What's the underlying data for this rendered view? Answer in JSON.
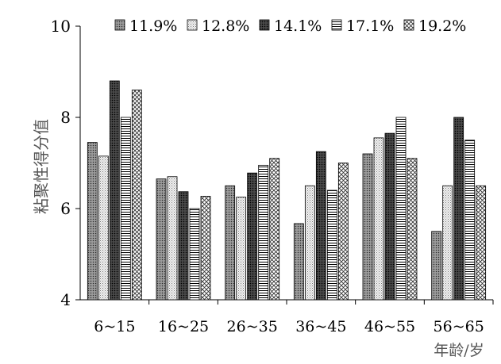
{
  "chart_data": {
    "type": "bar",
    "categories": [
      "6~15",
      "16~25",
      "26~35",
      "36~45",
      "46~55",
      "56~65"
    ],
    "series": [
      {
        "name": "11.9%",
        "values": [
          7.45,
          6.65,
          6.5,
          5.67,
          7.2,
          5.5
        ]
      },
      {
        "name": "12.8%",
        "values": [
          7.15,
          6.7,
          6.25,
          6.5,
          7.55,
          6.5
        ]
      },
      {
        "name": "14.1%",
        "values": [
          8.8,
          6.37,
          6.78,
          7.25,
          7.65,
          8.0
        ]
      },
      {
        "name": "17.1%",
        "values": [
          8.0,
          6.0,
          6.95,
          6.4,
          8.0,
          7.5
        ]
      },
      {
        "name": "19.2%",
        "values": [
          8.6,
          6.27,
          7.1,
          7.0,
          7.1,
          6.5
        ]
      }
    ],
    "ylabel": "粘聚性得分值",
    "xlabel": "年龄/岁",
    "ylim": [
      4,
      10
    ],
    "yticks": [
      4,
      6,
      8,
      10
    ],
    "grid": false,
    "legend_position": "top",
    "patterns": [
      "gray-dots",
      "light-dots",
      "dark-dots",
      "horizontal-lines",
      "crosshatch"
    ]
  }
}
